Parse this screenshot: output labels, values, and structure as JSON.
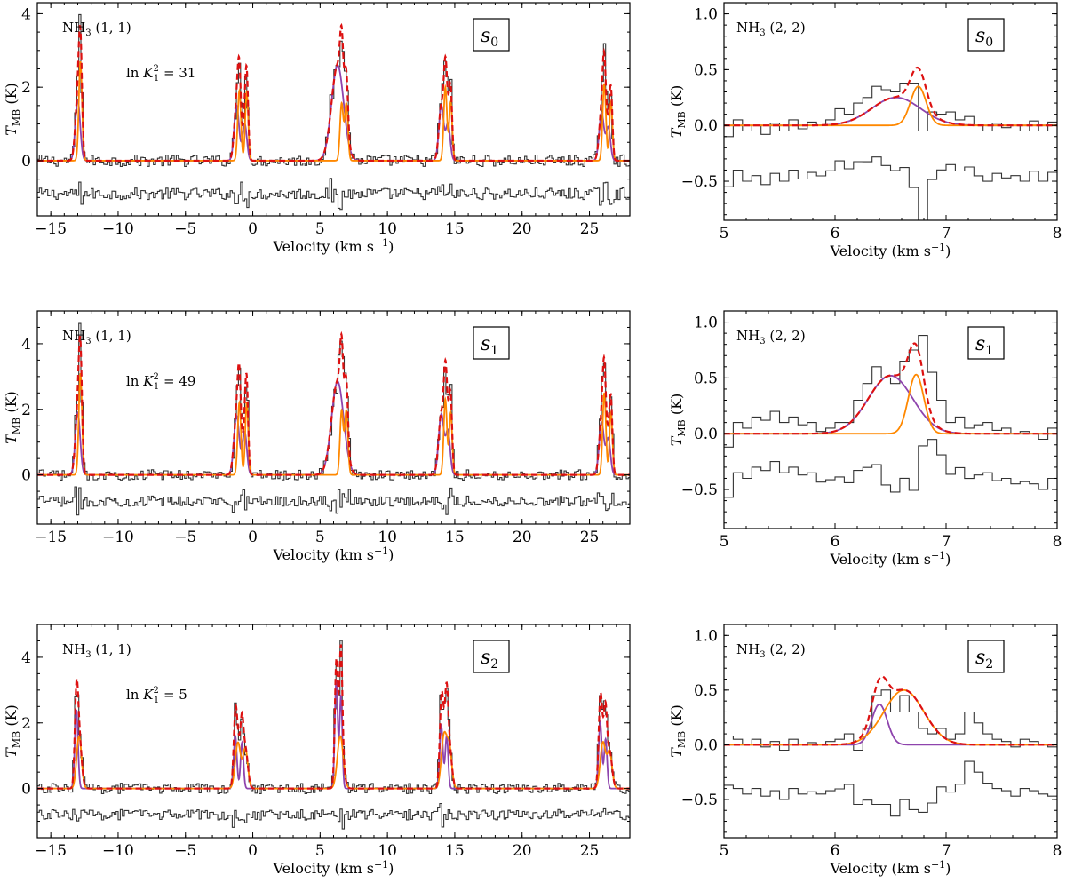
{
  "chart_data": [
    {
      "type": "line",
      "panel": "s0-nh3-11",
      "label": "s0",
      "annotation": "NH3 (1,1)",
      "k_annotation": "ln K_1^2 = 31",
      "xlabel": "Velocity (km s^-1)",
      "ylabel": "T_MB (K)",
      "xlim": [
        -16,
        28
      ],
      "ylim": [
        -1.5,
        4.3
      ],
      "xticks": [
        -15,
        -10,
        -5,
        0,
        5,
        10,
        15,
        20,
        25
      ],
      "yticks": [
        0,
        2,
        4
      ],
      "residual_offset": -0.9,
      "series": [
        {
          "role": "data",
          "color": "#333333",
          "style": "steps"
        },
        {
          "role": "component-1",
          "color": "#8e44ad",
          "style": "solid",
          "peaks": [
            [
              -13.0,
              1.65,
              0.18
            ],
            [
              -1.2,
              1.5,
              0.18
            ],
            [
              -0.6,
              1.0,
              0.16
            ],
            [
              6.3,
              2.6,
              0.45
            ],
            [
              14.0,
              1.5,
              0.18
            ],
            [
              14.5,
              1.0,
              0.16
            ],
            [
              25.9,
              1.3,
              0.18
            ],
            [
              26.4,
              0.9,
              0.16
            ]
          ]
        },
        {
          "role": "component-2",
          "color": "#ff8800",
          "style": "solid",
          "peaks": [
            [
              -12.8,
              2.7,
              0.12
            ],
            [
              -1.0,
              1.9,
              0.12
            ],
            [
              -0.45,
              1.9,
              0.11
            ],
            [
              6.6,
              1.55,
              0.12
            ],
            [
              6.95,
              1.55,
              0.12
            ],
            [
              14.3,
              2.0,
              0.12
            ],
            [
              14.7,
              1.6,
              0.11
            ],
            [
              26.1,
              2.1,
              0.12
            ],
            [
              26.6,
              1.6,
              0.11
            ]
          ]
        },
        {
          "role": "total-fit",
          "color": "#dd1111",
          "style": "dashed"
        }
      ]
    },
    {
      "type": "line",
      "panel": "s0-nh3-22",
      "label": "s0",
      "annotation": "NH3 (2,2)",
      "xlabel": "Velocity (km s^-1)",
      "ylabel": "T_MB (K)",
      "xlim": [
        5,
        8
      ],
      "ylim": [
        -0.85,
        1.1
      ],
      "xticks": [
        5,
        6,
        7,
        8
      ],
      "yticks": [
        -0.5,
        0.0,
        0.5,
        1.0
      ],
      "residual_offset": -0.45,
      "series": [
        {
          "role": "data",
          "color": "#333333",
          "style": "steps",
          "values": [
            -0.1,
            0.05,
            -0.05,
            0.0,
            -0.08,
            0.02,
            -0.05,
            0.05,
            -0.03,
            0.03,
            0.0,
            0.05,
            0.15,
            0.1,
            0.2,
            0.25,
            0.35,
            0.32,
            0.3,
            0.38,
            0.38,
            -0.05,
            0.12,
            0.1,
            0.12,
            0.05,
            0.08,
            0.0,
            -0.05,
            0.02,
            -0.02,
            0.0,
            -0.05,
            0.04,
            -0.05,
            0.03
          ]
        },
        {
          "role": "component-1",
          "color": "#8e44ad",
          "style": "solid",
          "peaks": [
            [
              6.55,
              0.25,
              0.22
            ]
          ]
        },
        {
          "role": "component-2",
          "color": "#ff8800",
          "style": "solid",
          "peaks": [
            [
              6.75,
              0.35,
              0.07
            ]
          ]
        },
        {
          "role": "total-fit",
          "color": "#dd1111",
          "style": "dashed"
        }
      ]
    },
    {
      "type": "line",
      "panel": "s1-nh3-11",
      "label": "s1",
      "annotation": "NH3 (1,1)",
      "k_annotation": "ln K_1^2 = 49",
      "xlabel": "Velocity (km s^-1)",
      "ylabel": "T_MB (K)",
      "xlim": [
        -16,
        28
      ],
      "ylim": [
        -1.5,
        5.0
      ],
      "xticks": [
        -15,
        -10,
        -5,
        0,
        5,
        10,
        15,
        20,
        25
      ],
      "yticks": [
        0,
        2,
        4
      ],
      "residual_offset": -0.8,
      "series": [
        {
          "role": "data",
          "color": "#333333",
          "style": "steps"
        },
        {
          "role": "component-1",
          "color": "#8e44ad",
          "style": "solid",
          "peaks": [
            [
              -13.0,
              1.9,
              0.18
            ],
            [
              -1.2,
              1.8,
              0.2
            ],
            [
              -0.6,
              1.3,
              0.16
            ],
            [
              6.3,
              2.85,
              0.45
            ],
            [
              14.0,
              1.85,
              0.2
            ],
            [
              14.5,
              1.3,
              0.16
            ],
            [
              25.9,
              1.6,
              0.18
            ],
            [
              26.4,
              1.1,
              0.16
            ]
          ]
        },
        {
          "role": "component-2",
          "color": "#ff8800",
          "style": "solid",
          "peaks": [
            [
              -12.8,
              3.1,
              0.12
            ],
            [
              -1.0,
              2.2,
              0.12
            ],
            [
              -0.45,
              2.2,
              0.11
            ],
            [
              6.6,
              1.95,
              0.12
            ],
            [
              6.95,
              1.95,
              0.12
            ],
            [
              14.3,
              2.3,
              0.12
            ],
            [
              14.7,
              1.9,
              0.11
            ],
            [
              26.1,
              2.5,
              0.12
            ],
            [
              26.6,
              1.9,
              0.11
            ]
          ]
        },
        {
          "role": "total-fit",
          "color": "#dd1111",
          "style": "dashed"
        }
      ]
    },
    {
      "type": "line",
      "panel": "s1-nh3-22",
      "label": "s1",
      "annotation": "NH3 (2,2)",
      "xlabel": "Velocity (km s^-1)",
      "ylabel": "T_MB (K)",
      "xlim": [
        5,
        8
      ],
      "ylim": [
        -0.85,
        1.1
      ],
      "xticks": [
        5,
        6,
        7,
        8
      ],
      "yticks": [
        -0.5,
        0.0,
        0.5,
        1.0
      ],
      "residual_offset": -0.45,
      "series": [
        {
          "role": "data",
          "color": "#333333",
          "style": "steps",
          "values": [
            -0.12,
            0.1,
            0.05,
            0.15,
            0.12,
            0.2,
            0.1,
            0.15,
            0.08,
            0.1,
            0.02,
            0.05,
            0.1,
            0.1,
            0.3,
            0.45,
            0.6,
            0.5,
            0.45,
            0.65,
            0.75,
            0.88,
            0.55,
            0.3,
            0.1,
            0.15,
            0.05,
            0.08,
            0.1,
            0.03,
            0.05,
            0.0,
            0.02,
            0.0,
            -0.05,
            0.05
          ]
        },
        {
          "role": "component-1",
          "color": "#8e44ad",
          "style": "solid",
          "peaks": [
            [
              6.5,
              0.52,
              0.2
            ]
          ]
        },
        {
          "role": "component-2",
          "color": "#ff8800",
          "style": "solid",
          "peaks": [
            [
              6.73,
              0.53,
              0.07
            ]
          ]
        },
        {
          "role": "total-fit",
          "color": "#dd1111",
          "style": "dashed"
        }
      ]
    },
    {
      "type": "line",
      "panel": "s2-nh3-11",
      "label": "s2",
      "annotation": "NH3 (1,1)",
      "k_annotation": "ln K_1^2 = 5",
      "xlabel": "Velocity (km s^-1)",
      "ylabel": "T_MB (K)",
      "xlim": [
        -16,
        28
      ],
      "ylim": [
        -1.5,
        5.0
      ],
      "xticks": [
        -15,
        -10,
        -5,
        0,
        5,
        10,
        15,
        20,
        25
      ],
      "yticks": [
        0,
        2,
        4
      ],
      "residual_offset": -0.8,
      "series": [
        {
          "role": "data",
          "color": "#333333",
          "style": "steps"
        },
        {
          "role": "component-1",
          "color": "#8e44ad",
          "style": "solid",
          "peaks": [
            [
              -13.1,
              2.4,
              0.12
            ],
            [
              -1.3,
              1.6,
              0.12
            ],
            [
              -0.8,
              1.4,
              0.11
            ],
            [
              6.2,
              3.3,
              0.11
            ],
            [
              6.55,
              2.8,
              0.1
            ],
            [
              14.0,
              1.9,
              0.12
            ],
            [
              14.4,
              1.6,
              0.11
            ],
            [
              25.8,
              2.0,
              0.12
            ],
            [
              26.2,
              1.5,
              0.11
            ]
          ]
        },
        {
          "role": "component-2",
          "color": "#ff8800",
          "style": "solid",
          "peaks": [
            [
              -12.9,
              1.6,
              0.18
            ],
            [
              -1.1,
              1.4,
              0.2
            ],
            [
              -0.55,
              1.2,
              0.18
            ],
            [
              6.5,
              1.6,
              0.22
            ],
            [
              14.2,
              1.6,
              0.2
            ],
            [
              14.6,
              1.2,
              0.18
            ],
            [
              26.0,
              1.4,
              0.2
            ],
            [
              26.5,
              1.1,
              0.18
            ]
          ]
        },
        {
          "role": "total-fit",
          "color": "#dd1111",
          "style": "dashed"
        }
      ]
    },
    {
      "type": "line",
      "panel": "s2-nh3-22",
      "label": "s2",
      "annotation": "NH3 (2,2)",
      "xlabel": "Velocity (km s^-1)",
      "ylabel": "T_MB (K)",
      "xlim": [
        5,
        8
      ],
      "ylim": [
        -0.85,
        1.1
      ],
      "xticks": [
        5,
        6,
        7,
        8
      ],
      "yticks": [
        -0.5,
        0.0,
        0.5,
        1.0
      ],
      "residual_offset": -0.45,
      "series": [
        {
          "role": "data",
          "color": "#333333",
          "style": "steps",
          "values": [
            0.08,
            0.05,
            0.0,
            0.05,
            -0.02,
            0.03,
            -0.05,
            0.05,
            0.0,
            0.02,
            0.0,
            0.03,
            0.05,
            0.1,
            -0.05,
            0.15,
            0.45,
            0.5,
            0.3,
            0.45,
            0.3,
            0.15,
            0.1,
            0.15,
            0.05,
            0.1,
            0.3,
            0.2,
            0.1,
            0.05,
            0.03,
            -0.02,
            0.05,
            0.03,
            0.0,
            -0.02
          ]
        },
        {
          "role": "component-1",
          "color": "#8e44ad",
          "style": "solid",
          "peaks": [
            [
              6.4,
              0.37,
              0.07
            ]
          ]
        },
        {
          "role": "component-2",
          "color": "#ff8800",
          "style": "solid",
          "peaks": [
            [
              6.62,
              0.5,
              0.18
            ]
          ]
        },
        {
          "role": "total-fit",
          "color": "#dd1111",
          "style": "dashed"
        }
      ]
    }
  ]
}
